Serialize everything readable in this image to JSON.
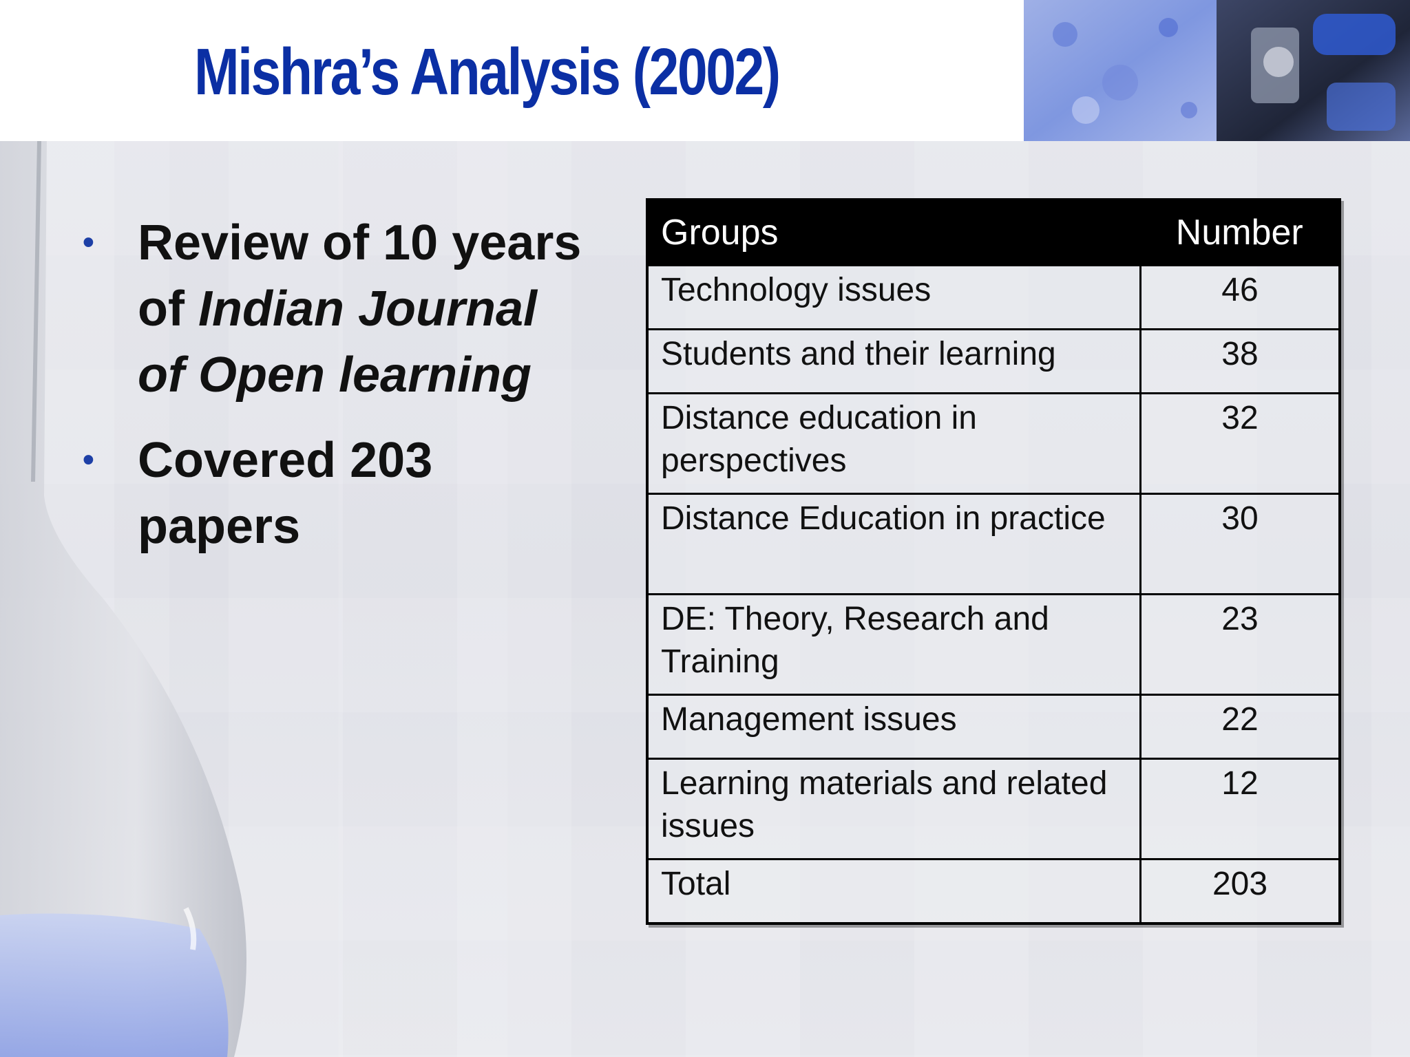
{
  "slide": {
    "title": "Mishra’s Analysis (2002)",
    "bullets": [
      {
        "line1": "Review of 10 years",
        "line2_prefix": "of ",
        "line2_italic": "Indian Journal",
        "line3_italic": "of Open learning"
      },
      {
        "line1": "Covered 203",
        "line2": "papers"
      }
    ],
    "bullet_symbol": "•"
  },
  "table": {
    "headers": [
      "Groups",
      "Number"
    ],
    "rows": [
      {
        "group": "Technology issues",
        "number": "46"
      },
      {
        "group": "Students and their learning",
        "number": "38"
      },
      {
        "group": "Distance education in perspectives",
        "number": "32"
      },
      {
        "group": "Distance Education in practice",
        "number": "30"
      },
      {
        "group": "DE: Theory, Research and Training",
        "number": "23"
      },
      {
        "group": "Management issues",
        "number": "22"
      },
      {
        "group": "Learning materials and related issues",
        "number": "12"
      },
      {
        "group": "Total",
        "number": "203"
      }
    ]
  },
  "colors": {
    "title": "#0b2fa4",
    "bullet": "#1d3fa6",
    "table_header_bg": "#000000",
    "table_header_text": "#ffffff"
  },
  "images": {
    "header_image": "microscope-and-cells-photo",
    "background_image": "laboratory-flask-photo"
  }
}
